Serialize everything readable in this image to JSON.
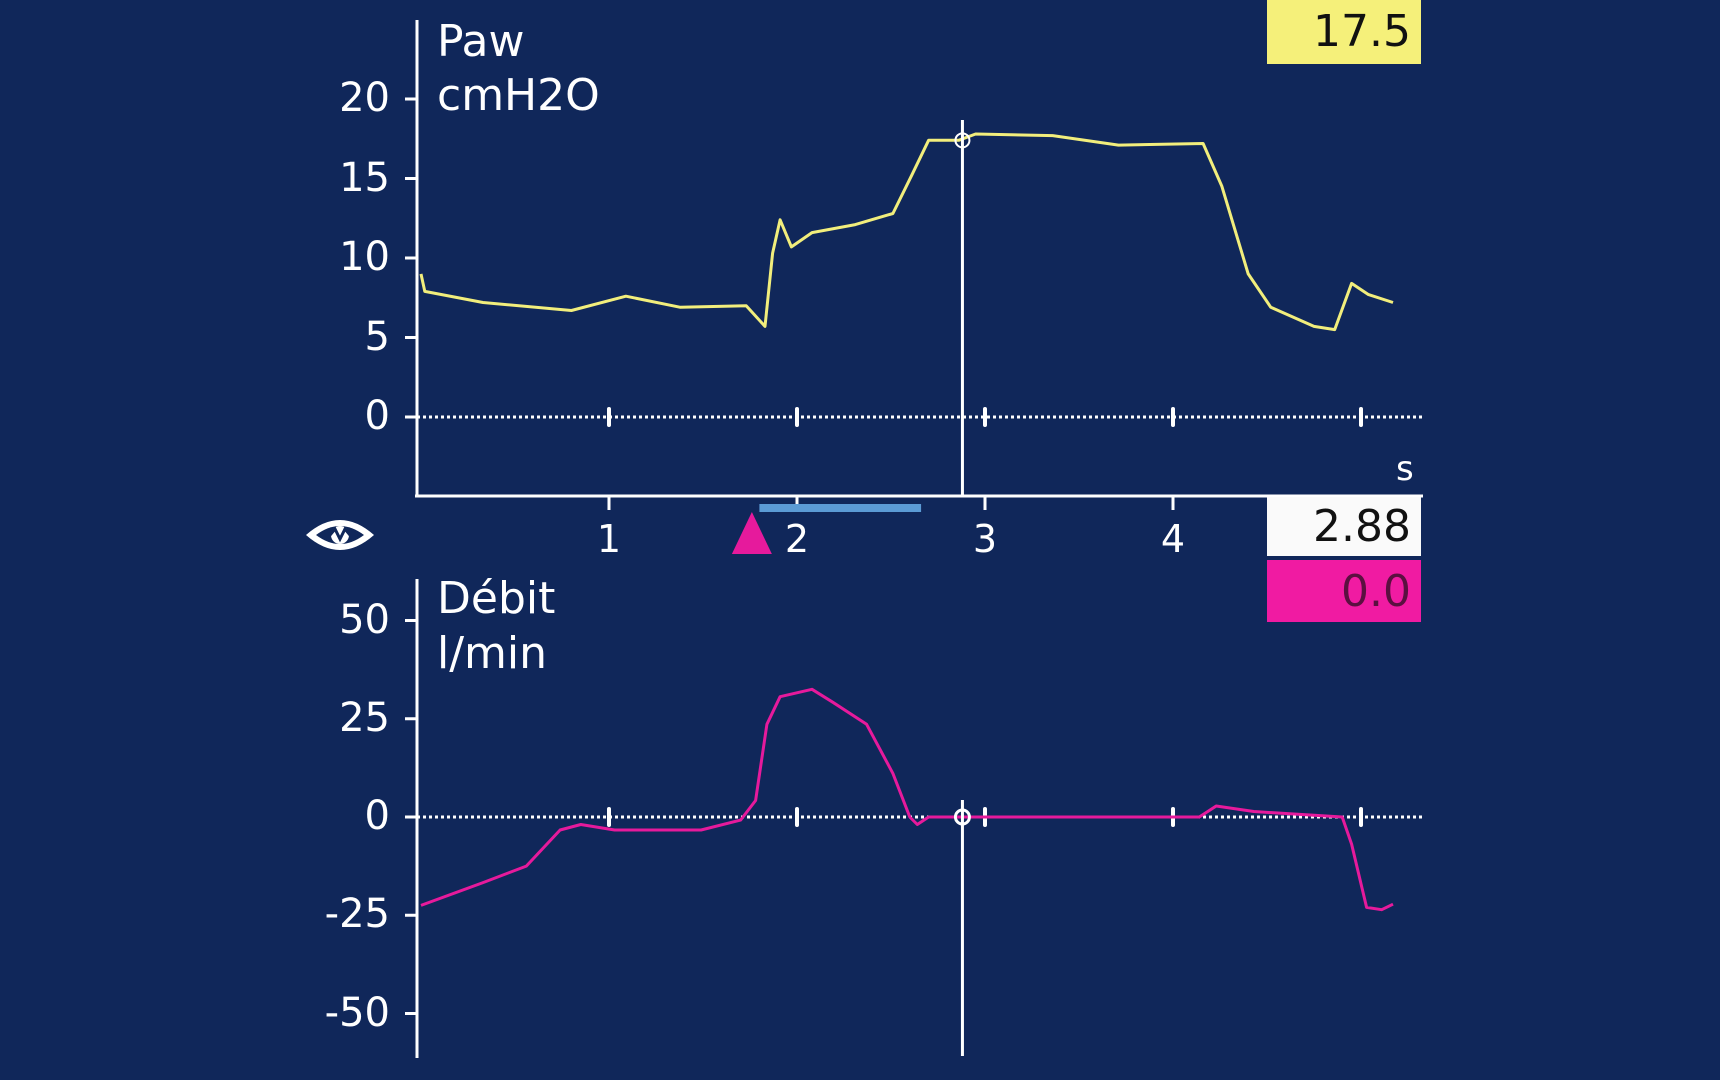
{
  "chart_data": [
    {
      "type": "line",
      "title": "Paw",
      "ylabel": "cmH2O",
      "xlabel": "s",
      "xlim": [
        0,
        5.33
      ],
      "ylim": [
        -4.5,
        25
      ],
      "yticks": [
        "20",
        "15",
        "10",
        "5",
        "0"
      ],
      "ytick_values": [
        20,
        15,
        10,
        5,
        0
      ],
      "xticks": [
        "1",
        "2",
        "3",
        "4"
      ],
      "xtick_values": [
        1,
        2,
        3,
        4,
        5
      ],
      "color": "#f2ee7c",
      "cursor_value": "17.5",
      "cursor_box_color": "#f5f07a",
      "x": [
        0,
        0.02,
        0.33,
        0.8,
        1.09,
        1.38,
        1.73,
        1.83,
        1.87,
        1.91,
        1.97,
        2.08,
        2.31,
        2.51,
        2.61,
        2.7,
        2.86,
        2.95,
        3.36,
        3.71,
        4.16,
        4.26,
        4.4,
        4.52,
        4.75,
        4.86,
        4.95,
        5.04,
        5.17
      ],
      "y": [
        9,
        7.9,
        7.2,
        6.7,
        7.6,
        6.9,
        7.0,
        5.7,
        10.3,
        12.4,
        10.7,
        11.6,
        12.1,
        12.8,
        15.2,
        17.4,
        17.4,
        17.8,
        17.7,
        17.1,
        17.2,
        14.5,
        9.0,
        6.9,
        5.7,
        5.5,
        8.4,
        7.7,
        7.2
      ]
    },
    {
      "type": "line",
      "title": "Débit",
      "ylabel": "l/min",
      "xlim": [
        0,
        5.33
      ],
      "ylim": [
        -62,
        60
      ],
      "yticks": [
        "50",
        "25",
        "0",
        "-25",
        "-50"
      ],
      "ytick_values": [
        50,
        25,
        0,
        -25,
        -50
      ],
      "xtick_values": [
        1,
        2,
        3,
        4,
        5
      ],
      "color": "#e61a9c",
      "cursor_value": "0.0",
      "cursor_box_color": "#f01ba2",
      "x": [
        0,
        0.33,
        0.56,
        0.74,
        0.85,
        1.03,
        1.49,
        1.7,
        1.78,
        1.84,
        1.91,
        2.08,
        2.19,
        2.37,
        2.51,
        2.6,
        2.64,
        2.7,
        4.14,
        4.23,
        4.43,
        4.9,
        4.95,
        5.03,
        5.11,
        5.17
      ],
      "y": [
        -22.5,
        -16.7,
        -12.5,
        -3.3,
        -1.9,
        -3.3,
        -3.3,
        -0.8,
        4.2,
        23.6,
        30.6,
        32.5,
        29.2,
        23.6,
        11.1,
        0,
        -1.9,
        0,
        0,
        2.8,
        1.4,
        0,
        -6.9,
        -23,
        -23.6,
        -22.2
      ]
    }
  ],
  "cursor": {
    "time": 2.88,
    "time_label": "2.88"
  },
  "trigger_marker": {
    "time": 1.76,
    "color": "#e61a9c"
  },
  "inspiration_bar": {
    "start": 1.8,
    "end": 2.66,
    "color": "#5b9bd5"
  },
  "icons": {
    "freeze": "eye-icon"
  }
}
